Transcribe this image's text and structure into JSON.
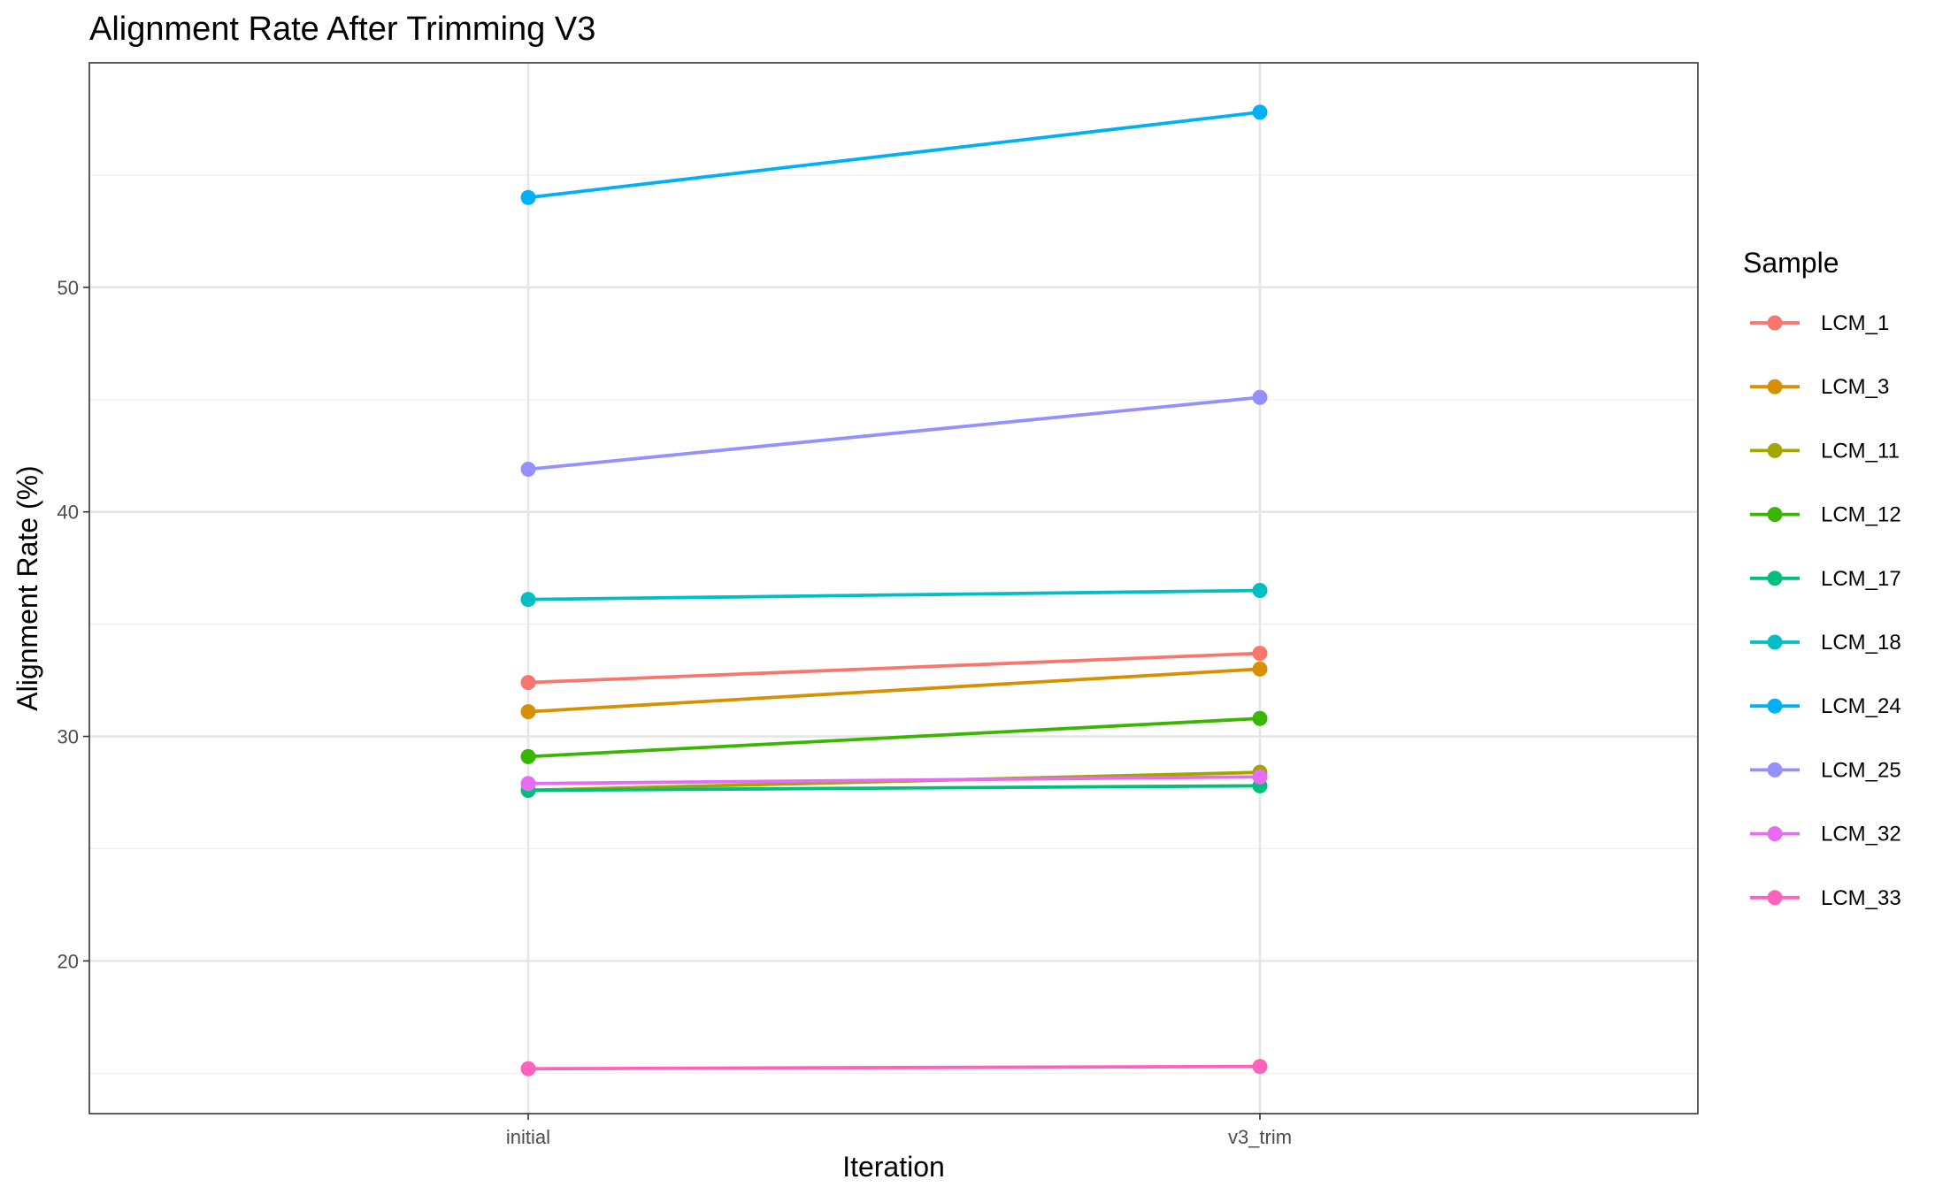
{
  "chart_data": {
    "type": "line",
    "title": "Alignment Rate After Trimming V3",
    "xlabel": "Iteration",
    "ylabel": "Alignment Rate (%)",
    "categories": [
      "initial",
      "v3_trim"
    ],
    "ylim": [
      13.2,
      60.0
    ],
    "yticks": [
      20,
      30,
      40,
      50
    ],
    "grid": true,
    "legend": {
      "title": "Sample",
      "position": "right"
    },
    "series": [
      {
        "name": "LCM_1",
        "color": "#F8766D",
        "values": [
          32.4,
          33.7
        ]
      },
      {
        "name": "LCM_3",
        "color": "#D89000",
        "values": [
          31.1,
          33.0
        ]
      },
      {
        "name": "LCM_11",
        "color": "#A3A500",
        "values": [
          27.6,
          28.4
        ]
      },
      {
        "name": "LCM_12",
        "color": "#39B600",
        "values": [
          29.1,
          30.8
        ]
      },
      {
        "name": "LCM_17",
        "color": "#00BF7D",
        "values": [
          27.6,
          27.8
        ]
      },
      {
        "name": "LCM_18",
        "color": "#00BFC4",
        "values": [
          36.1,
          36.5
        ]
      },
      {
        "name": "LCM_24",
        "color": "#00B0F6",
        "values": [
          54.0,
          57.8
        ]
      },
      {
        "name": "LCM_25",
        "color": "#9590FF",
        "values": [
          41.9,
          45.1
        ]
      },
      {
        "name": "LCM_32",
        "color": "#E76BF3",
        "values": [
          27.9,
          28.2
        ]
      },
      {
        "name": "LCM_33",
        "color": "#FF62BC",
        "values": [
          15.2,
          15.3
        ]
      }
    ]
  }
}
